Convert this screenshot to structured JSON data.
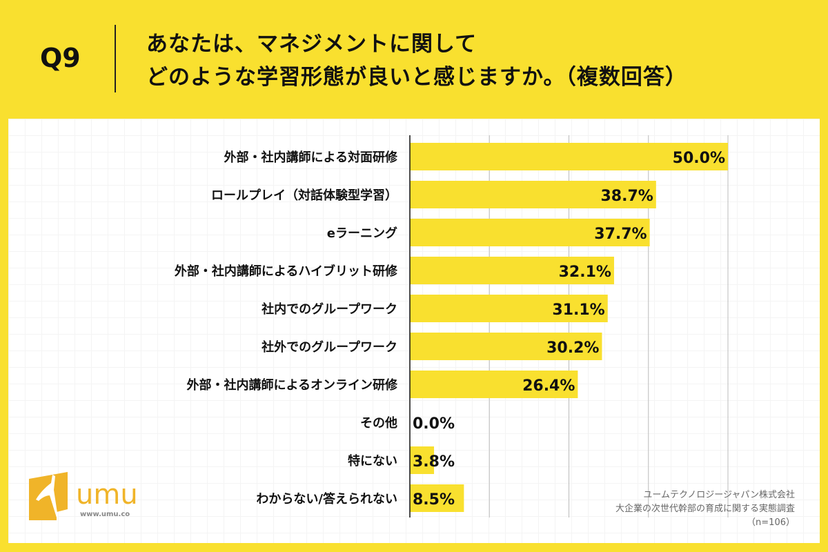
{
  "header": {
    "question": "Q9",
    "title_line1": "あなたは、マネジメントに関して",
    "title_line2": "どのような学習形態が良いと感じますか。（複数回答）"
  },
  "chart_data": {
    "type": "bar",
    "orientation": "horizontal",
    "categories": [
      "外部・社内講師による対面研修",
      "ロールプレイ（対話体験型学習）",
      "eラーニング",
      "外部・社内講師によるハイブリット研修",
      "社内でのグループワーク",
      "社外でのグループワーク",
      "外部・社内講師によるオンライン研修",
      "その他",
      "特にない",
      "わからない/答えられない"
    ],
    "values": [
      50.0,
      38.7,
      37.7,
      32.1,
      31.1,
      30.2,
      26.4,
      0.0,
      3.8,
      8.5
    ],
    "labels": [
      "50.0%",
      "38.7%",
      "37.7%",
      "32.1%",
      "31.1%",
      "30.2%",
      "26.4%",
      "0.0%",
      "3.8%",
      "8.5%"
    ],
    "xlim": [
      0,
      50
    ],
    "grid": true,
    "bar_color": "#f9e02f"
  },
  "footer": {
    "company": "ユームテクノロジージャパン株式会社",
    "survey": "大企業の次世代幹部の育成に関する実態調査",
    "n": "（n=106）"
  },
  "logo": {
    "text": "umu",
    "url": "www.umu.co",
    "color": "#f0b429"
  }
}
